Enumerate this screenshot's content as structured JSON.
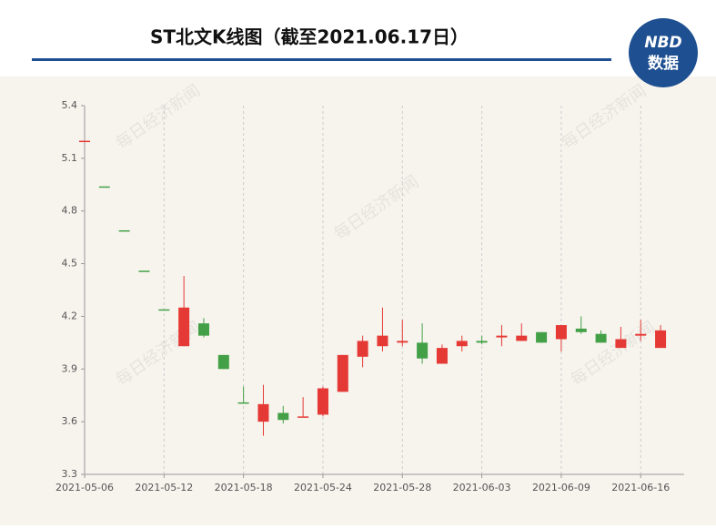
{
  "chart_data": {
    "type": "candlestick",
    "title": "ST北文K线图（截至2021.06.17日）",
    "logo": {
      "top": "NBD",
      "bottom": "数据"
    },
    "watermark": "每日经济新闻",
    "categories": [
      "2021-05-06",
      null,
      null,
      null,
      "2021-05-12",
      null,
      null,
      null,
      "2021-05-18",
      null,
      null,
      null,
      "2021-05-24",
      null,
      null,
      null,
      "2021-05-28",
      null,
      null,
      null,
      "2021-06-03",
      null,
      null,
      null,
      "2021-06-09",
      null,
      null,
      null,
      "2021-06-16",
      null
    ],
    "open": [
      5.2,
      4.94,
      4.69,
      4.46,
      4.24,
      4.03,
      4.16,
      3.98,
      3.71,
      3.6,
      3.65,
      3.63,
      3.64,
      3.77,
      3.97,
      4.03,
      4.05,
      4.05,
      3.93,
      4.03,
      4.06,
      4.08,
      4.06,
      4.11,
      4.07,
      4.13,
      4.1,
      4.02,
      4.09,
      4.02
    ],
    "high": [
      5.2,
      4.94,
      4.69,
      4.46,
      4.24,
      4.43,
      4.19,
      3.98,
      3.8,
      3.81,
      3.69,
      3.74,
      3.8,
      3.98,
      4.09,
      4.25,
      4.18,
      4.16,
      4.04,
      4.09,
      4.09,
      4.15,
      4.16,
      4.11,
      4.15,
      4.2,
      4.12,
      4.14,
      4.18,
      4.15
    ],
    "low": [
      5.2,
      4.94,
      4.69,
      4.46,
      4.24,
      4.03,
      4.08,
      3.9,
      3.71,
      3.52,
      3.59,
      3.63,
      3.63,
      3.77,
      3.91,
      4.0,
      4.03,
      3.93,
      3.93,
      4.0,
      4.04,
      4.03,
      4.06,
      4.05,
      4.0,
      4.1,
      4.05,
      4.02,
      4.06,
      4.02
    ],
    "close": [
      5.2,
      4.94,
      4.69,
      4.46,
      4.24,
      4.25,
      4.09,
      3.9,
      3.71,
      3.7,
      3.61,
      3.63,
      3.79,
      3.98,
      4.06,
      4.09,
      4.06,
      3.96,
      4.02,
      4.06,
      4.05,
      4.09,
      4.09,
      4.05,
      4.15,
      4.11,
      4.05,
      4.07,
      4.1,
      4.12
    ],
    "up_color": "#e53935",
    "down_color": "#43a047",
    "ylim": [
      3.3,
      5.4
    ],
    "yticks": [
      3.3,
      3.6,
      3.9,
      4.2,
      4.5,
      4.8,
      5.1,
      5.4
    ],
    "grid": true
  }
}
